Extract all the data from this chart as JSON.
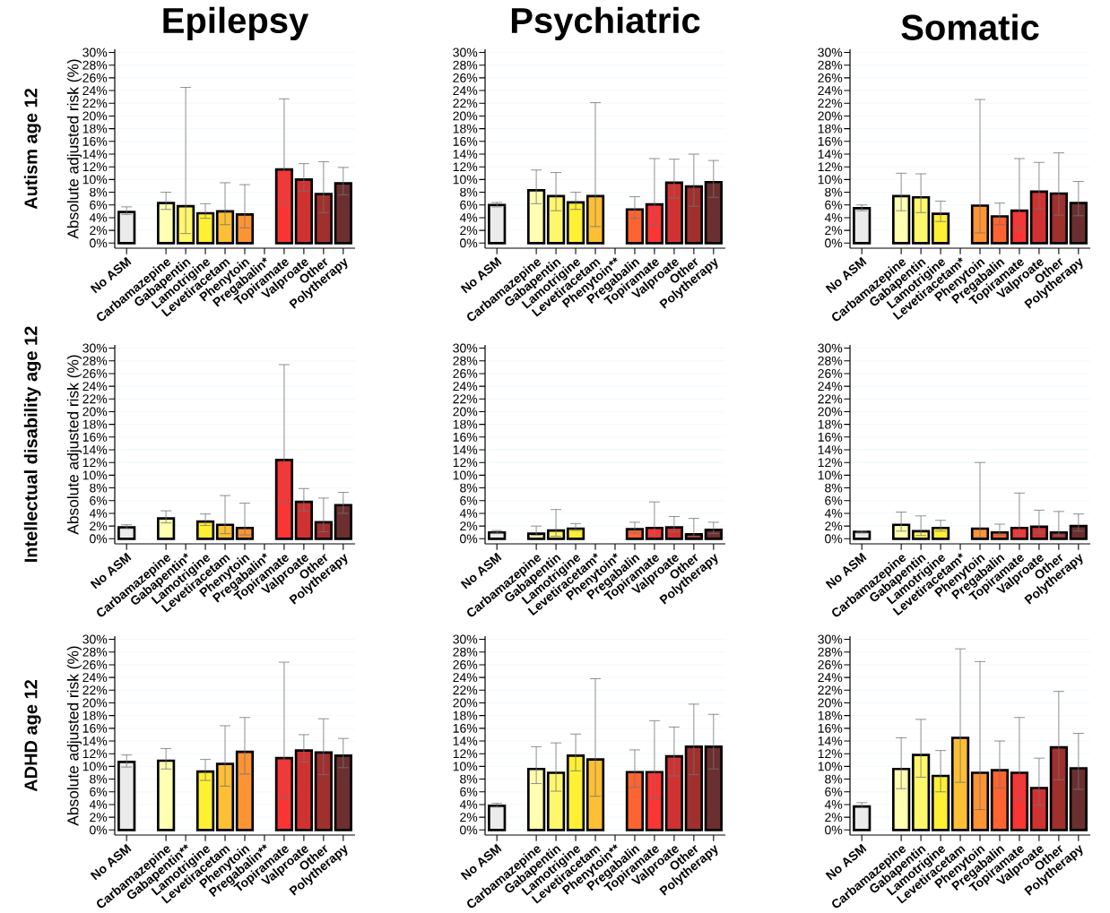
{
  "chart_data": [
    {
      "type": "bar",
      "title": "Epilepsy",
      "subtitle": "Autism age 12",
      "ylabel": "Absolute adjusted risk (%)",
      "grid": "y",
      "categories": [
        "No ASM",
        null,
        "Carbamazepine",
        "Gabapentin",
        "Lamotrigine",
        "Levetiracetam",
        "Phenytoin",
        "Pregabalin*",
        "Topiramate",
        "Valproate",
        "Other",
        "Polytherapy"
      ],
      "values": [
        4.9,
        null,
        6.3,
        5.8,
        4.7,
        5.0,
        4.5,
        null,
        11.6,
        10.0,
        7.7,
        9.4
      ],
      "errors": [
        [
          4.5,
          5.7
        ],
        null,
        [
          5.3,
          8.0
        ],
        [
          1.5,
          24.5
        ],
        [
          3.9,
          6.2
        ],
        [
          2.9,
          9.5
        ],
        [
          2.4,
          9.2
        ],
        null,
        [
          6.1,
          22.7
        ],
        [
          8.2,
          12.5
        ],
        [
          4.8,
          12.8
        ],
        [
          7.6,
          11.9
        ]
      ],
      "colors": [
        "#ebebeb",
        null,
        "#ffffb2",
        "#fff76b",
        "#fff033",
        "#fdbf35",
        "#fd9434",
        "#fd6431",
        "#fb3434",
        "#d03232",
        "#a0302e",
        "#6b2f2f"
      ],
      "ylim": [
        -0.8,
        30.5
      ],
      "yticks": [
        {
          "value": 0,
          "label": "0%"
        },
        {
          "value": 2,
          "label": "2%"
        },
        {
          "value": 4,
          "label": "4%"
        },
        {
          "value": 6,
          "label": "6%"
        },
        {
          "value": 8,
          "label": "8%"
        },
        {
          "value": 10,
          "label": "10%"
        },
        {
          "value": 12,
          "label": "12%"
        },
        {
          "value": 14,
          "label": "14%"
        },
        {
          "value": 16,
          "label": "16%"
        },
        {
          "value": 18,
          "label": "18%"
        },
        {
          "value": 20,
          "label": "20%"
        },
        {
          "value": 22,
          "label": "22%"
        },
        {
          "value": 24,
          "label": "24%"
        },
        {
          "value": 26,
          "label": "26%"
        },
        {
          "value": 28,
          "label": "28%"
        },
        {
          "value": 30,
          "label": "30%"
        }
      ]
    },
    {
      "type": "bar",
      "title": "Psychiatric",
      "grid": "y",
      "categories": [
        "No ASM",
        null,
        "Carbamazepine",
        "Gabapentin",
        "Lamotrigine",
        "Levetiracetam",
        "Phenytoin**",
        "Pregabalin",
        "Topiramate",
        "Valproate",
        "Other",
        "Polytherapy"
      ],
      "values": [
        6.0,
        null,
        8.3,
        7.4,
        6.4,
        7.4,
        null,
        5.3,
        6.1,
        9.5,
        8.9,
        9.6
      ],
      "errors": [
        [
          5.7,
          6.4
        ],
        null,
        [
          6.2,
          11.5
        ],
        [
          5.1,
          11.1
        ],
        [
          5.3,
          8.0
        ],
        [
          2.6,
          22.1
        ],
        null,
        [
          3.9,
          7.3
        ],
        [
          2.9,
          13.3
        ],
        [
          7.1,
          13.2
        ],
        [
          5.8,
          14.0
        ],
        [
          7.2,
          13.0
        ]
      ],
      "colors": [
        "#ebebeb",
        null,
        "#ffffb2",
        "#fff76b",
        "#fff033",
        "#fdbf35",
        "#fd9434",
        "#fd6431",
        "#fb3434",
        "#d03232",
        "#a0302e",
        "#6b2f2f"
      ],
      "ylim": [
        -0.8,
        30.5
      ],
      "yticks": [
        {
          "value": 0,
          "label": "0%"
        },
        {
          "value": 2,
          "label": "2%"
        },
        {
          "value": 4,
          "label": "4%"
        },
        {
          "value": 6,
          "label": "6%"
        },
        {
          "value": 8,
          "label": "8%"
        },
        {
          "value": 10,
          "label": "10%"
        },
        {
          "value": 12,
          "label": "12%"
        },
        {
          "value": 14,
          "label": "14%"
        },
        {
          "value": 16,
          "label": "16%"
        },
        {
          "value": 18,
          "label": "18%"
        },
        {
          "value": 20,
          "label": "20%"
        },
        {
          "value": 22,
          "label": "22%"
        },
        {
          "value": 24,
          "label": "24%"
        },
        {
          "value": 26,
          "label": "26%"
        },
        {
          "value": 28,
          "label": "28%"
        },
        {
          "value": 30,
          "label": "30%"
        }
      ]
    },
    {
      "type": "bar",
      "title": "Somatic",
      "grid": "y",
      "categories": [
        "No ASM",
        null,
        "Carbamazepine",
        "Gabapentin",
        "Lamotrigine",
        "Levetiracetam*",
        "Phenytoin",
        "Pregabalin",
        "Topiramate",
        "Valproate",
        "Other",
        "Polytherapy"
      ],
      "values": [
        5.5,
        null,
        7.4,
        7.2,
        4.6,
        null,
        5.9,
        4.2,
        5.1,
        8.1,
        7.8,
        6.3
      ],
      "errors": [
        [
          5.1,
          6.0
        ],
        null,
        [
          5.1,
          11.0
        ],
        [
          4.8,
          10.9
        ],
        [
          3.4,
          6.6
        ],
        null,
        [
          1.6,
          22.6
        ],
        [
          2.9,
          6.3
        ],
        [
          2.1,
          13.3
        ],
        [
          5.4,
          12.7
        ],
        [
          4.4,
          14.2
        ],
        [
          4.3,
          9.7
        ]
      ],
      "colors": [
        "#ebebeb",
        null,
        "#ffffb2",
        "#fff76b",
        "#fff033",
        "#fdbf35",
        "#fd9434",
        "#fd6431",
        "#fb3434",
        "#d03232",
        "#a0302e",
        "#6b2f2f"
      ],
      "ylim": [
        -0.8,
        30.5
      ],
      "yticks": [
        {
          "value": 0,
          "label": "0%"
        },
        {
          "value": 2,
          "label": "2%"
        },
        {
          "value": 4,
          "label": "4%"
        },
        {
          "value": 6,
          "label": "6%"
        },
        {
          "value": 8,
          "label": "8%"
        },
        {
          "value": 10,
          "label": "10%"
        },
        {
          "value": 12,
          "label": "12%"
        },
        {
          "value": 14,
          "label": "14%"
        },
        {
          "value": 16,
          "label": "16%"
        },
        {
          "value": 18,
          "label": "18%"
        },
        {
          "value": 20,
          "label": "20%"
        },
        {
          "value": 22,
          "label": "22%"
        },
        {
          "value": 24,
          "label": "24%"
        },
        {
          "value": 26,
          "label": "26%"
        },
        {
          "value": 28,
          "label": "28%"
        },
        {
          "value": 30,
          "label": "30%"
        }
      ]
    },
    {
      "type": "bar",
      "subtitle": "Intellectual disability age 12",
      "ylabel": "Absolute adjusted risk (%)",
      "grid": "y",
      "categories": [
        "No ASM",
        null,
        "Carbamazepine",
        "Gabapentin*",
        "Lamotrigine",
        "Levetiracetam",
        "Phenytoin",
        "Pregabalin*",
        "Topiramate",
        "Valproate",
        "Other",
        "Polytherapy"
      ],
      "values": [
        1.8,
        null,
        3.2,
        null,
        2.7,
        2.2,
        1.7,
        null,
        12.4,
        5.8,
        2.6,
        5.3
      ],
      "errors": [
        [
          1.6,
          2.2
        ],
        null,
        [
          2.5,
          4.4
        ],
        null,
        [
          2.1,
          3.9
        ],
        [
          0.8,
          6.8
        ],
        [
          0.6,
          5.6
        ],
        null,
        [
          5.7,
          27.4
        ],
        [
          4.4,
          7.9
        ],
        [
          1.1,
          6.4
        ],
        [
          4.0,
          7.3
        ]
      ],
      "colors": [
        "#ebebeb",
        null,
        "#ffffb2",
        "#fff76b",
        "#fff033",
        "#fdbf35",
        "#fd9434",
        "#fd6431",
        "#fb3434",
        "#d03232",
        "#a0302e",
        "#6b2f2f"
      ],
      "ylim": [
        -0.8,
        30.5
      ],
      "yticks": [
        {
          "value": 0,
          "label": "0%"
        },
        {
          "value": 2,
          "label": "2%"
        },
        {
          "value": 4,
          "label": "4%"
        },
        {
          "value": 6,
          "label": "6%"
        },
        {
          "value": 8,
          "label": "8%"
        },
        {
          "value": 10,
          "label": "10%"
        },
        {
          "value": 12,
          "label": "12%"
        },
        {
          "value": 14,
          "label": "14%"
        },
        {
          "value": 16,
          "label": "16%"
        },
        {
          "value": 18,
          "label": "18%"
        },
        {
          "value": 20,
          "label": "20%"
        },
        {
          "value": 22,
          "label": "22%"
        },
        {
          "value": 24,
          "label": "24%"
        },
        {
          "value": 26,
          "label": "26%"
        },
        {
          "value": 28,
          "label": "28%"
        },
        {
          "value": 30,
          "label": "30%"
        }
      ]
    },
    {
      "type": "bar",
      "grid": "y",
      "categories": [
        "No ASM",
        null,
        "Carbamazepine",
        "Gabapentin",
        "Lamotrigine",
        "Levetiracetam*",
        "Phenytoin*",
        "Pregabalin",
        "Topiramate",
        "Valproate",
        "Other",
        "Polytherapy"
      ],
      "values": [
        1.0,
        null,
        0.8,
        1.3,
        1.6,
        null,
        null,
        1.5,
        1.7,
        1.8,
        0.7,
        1.4
      ],
      "errors": [
        [
          0.9,
          1.3
        ],
        null,
        [
          0.5,
          2.0
        ],
        [
          0.4,
          4.6
        ],
        [
          1.3,
          2.4
        ],
        null,
        null,
        [
          0.9,
          2.6
        ],
        [
          0.6,
          5.8
        ],
        [
          1.1,
          3.5
        ],
        [
          0.4,
          3.2
        ],
        [
          0.8,
          2.6
        ]
      ],
      "colors": [
        "#ebebeb",
        null,
        "#ffffb2",
        "#fff76b",
        "#fff033",
        "#fdbf35",
        "#fd9434",
        "#fd6431",
        "#fb3434",
        "#d03232",
        "#a0302e",
        "#6b2f2f"
      ],
      "ylim": [
        -0.8,
        30.5
      ],
      "yticks": [
        {
          "value": 0,
          "label": "0%"
        },
        {
          "value": 2,
          "label": "2%"
        },
        {
          "value": 4,
          "label": "4%"
        },
        {
          "value": 6,
          "label": "6%"
        },
        {
          "value": 8,
          "label": "8%"
        },
        {
          "value": 10,
          "label": "10%"
        },
        {
          "value": 12,
          "label": "12%"
        },
        {
          "value": 14,
          "label": "14%"
        },
        {
          "value": 16,
          "label": "16%"
        },
        {
          "value": 18,
          "label": "18%"
        },
        {
          "value": 20,
          "label": "20%"
        },
        {
          "value": 22,
          "label": "22%"
        },
        {
          "value": 24,
          "label": "24%"
        },
        {
          "value": 26,
          "label": "26%"
        },
        {
          "value": 28,
          "label": "28%"
        },
        {
          "value": 30,
          "label": "30%"
        }
      ]
    },
    {
      "type": "bar",
      "grid": "y",
      "categories": [
        "No ASM",
        null,
        "Carbamazepine",
        "Gabapentin",
        "Lamotrigine",
        "Levetiracetam*",
        "Phenytoin",
        "Pregabalin",
        "Topiramate",
        "Valproate",
        "Other",
        "Polytherapy"
      ],
      "values": [
        1.1,
        null,
        2.2,
        1.2,
        1.7,
        null,
        1.6,
        1.0,
        1.7,
        1.9,
        1.0,
        2.0
      ],
      "errors": [
        [
          0.9,
          1.2
        ],
        null,
        [
          1.2,
          4.2
        ],
        [
          0.5,
          3.6
        ],
        [
          1.2,
          2.9
        ],
        null,
        [
          0.2,
          12.0
        ],
        [
          0.6,
          2.3
        ],
        [
          0.6,
          7.2
        ],
        [
          1.0,
          4.5
        ],
        [
          0.5,
          4.3
        ],
        [
          1.2,
          3.9
        ]
      ],
      "colors": [
        "#ebebeb",
        null,
        "#ffffb2",
        "#fff76b",
        "#fff033",
        "#fdbf35",
        "#fd9434",
        "#fd6431",
        "#fb3434",
        "#d03232",
        "#a0302e",
        "#6b2f2f"
      ],
      "ylim": [
        -0.8,
        30.5
      ],
      "yticks": [
        {
          "value": 0,
          "label": "0%"
        },
        {
          "value": 2,
          "label": "2%"
        },
        {
          "value": 4,
          "label": "4%"
        },
        {
          "value": 6,
          "label": "6%"
        },
        {
          "value": 8,
          "label": "8%"
        },
        {
          "value": 10,
          "label": "10%"
        },
        {
          "value": 12,
          "label": "12%"
        },
        {
          "value": 14,
          "label": "14%"
        },
        {
          "value": 16,
          "label": "16%"
        },
        {
          "value": 18,
          "label": "18%"
        },
        {
          "value": 20,
          "label": "20%"
        },
        {
          "value": 22,
          "label": "22%"
        },
        {
          "value": 24,
          "label": "24%"
        },
        {
          "value": 26,
          "label": "26%"
        },
        {
          "value": 28,
          "label": "28%"
        },
        {
          "value": 30,
          "label": "30%"
        }
      ]
    },
    {
      "type": "bar",
      "subtitle": "ADHD age 12",
      "ylabel": "Absolute adjusted risk (%)",
      "grid": "y",
      "categories": [
        "No ASM",
        null,
        "Carbamazepine",
        "Gabapentin**",
        "Lamotrigine",
        "Levetiracetam",
        "Phenytoin",
        "Pregabalin**",
        "Topiramate",
        "Valproate",
        "Other",
        "Polytherapy"
      ],
      "values": [
        10.7,
        null,
        10.9,
        null,
        9.2,
        10.4,
        12.3,
        null,
        11.3,
        12.5,
        12.2,
        11.7
      ],
      "errors": [
        [
          9.9,
          11.8
        ],
        null,
        [
          9.6,
          12.8
        ],
        null,
        [
          7.8,
          11.1
        ],
        [
          6.9,
          16.4
        ],
        [
          8.8,
          17.7
        ],
        null,
        [
          5.0,
          26.4
        ],
        [
          10.7,
          15.0
        ],
        [
          8.7,
          17.5
        ],
        [
          9.8,
          14.4
        ]
      ],
      "colors": [
        "#ebebeb",
        null,
        "#ffffb2",
        "#fff76b",
        "#fff033",
        "#fdbf35",
        "#fd9434",
        "#fd6431",
        "#fb3434",
        "#d03232",
        "#a0302e",
        "#6b2f2f"
      ],
      "ylim": [
        -0.8,
        30.5
      ],
      "yticks": [
        {
          "value": 0,
          "label": "0%"
        },
        {
          "value": 2,
          "label": "2%"
        },
        {
          "value": 4,
          "label": "4%"
        },
        {
          "value": 6,
          "label": "6%"
        },
        {
          "value": 8,
          "label": "8%"
        },
        {
          "value": 10,
          "label": "10%"
        },
        {
          "value": 12,
          "label": "12%"
        },
        {
          "value": 14,
          "label": "14%"
        },
        {
          "value": 16,
          "label": "16%"
        },
        {
          "value": 18,
          "label": "18%"
        },
        {
          "value": 20,
          "label": "20%"
        },
        {
          "value": 22,
          "label": "22%"
        },
        {
          "value": 24,
          "label": "24%"
        },
        {
          "value": 26,
          "label": "26%"
        },
        {
          "value": 28,
          "label": "28%"
        },
        {
          "value": 30,
          "label": "30%"
        }
      ]
    },
    {
      "type": "bar",
      "grid": "y",
      "categories": [
        "No ASM",
        null,
        "Carbamazepine",
        "Gabapentin",
        "Lamotrigine",
        "Levetiracetam",
        "Phenytoin**",
        "Pregabalin",
        "Topiramate",
        "Valproate",
        "Other",
        "Polytherapy"
      ],
      "values": [
        3.8,
        null,
        9.6,
        9.0,
        11.7,
        11.1,
        null,
        9.1,
        9.1,
        11.6,
        13.1,
        13.1
      ],
      "errors": [
        [
          3.6,
          4.2
        ],
        null,
        [
          7.3,
          13.1
        ],
        [
          6.1,
          13.7
        ],
        [
          9.3,
          15.1
        ],
        [
          5.3,
          23.8
        ],
        null,
        [
          6.7,
          12.6
        ],
        [
          4.9,
          17.2
        ],
        [
          8.5,
          16.2
        ],
        [
          8.7,
          19.8
        ],
        [
          9.6,
          18.2
        ]
      ],
      "colors": [
        "#ebebeb",
        null,
        "#ffffb2",
        "#fff76b",
        "#fff033",
        "#fdbf35",
        "#fd9434",
        "#fd6431",
        "#fb3434",
        "#d03232",
        "#a0302e",
        "#6b2f2f"
      ],
      "ylim": [
        -0.8,
        30.5
      ],
      "yticks": [
        {
          "value": 0,
          "label": "0%"
        },
        {
          "value": 2,
          "label": "2%"
        },
        {
          "value": 4,
          "label": "4%"
        },
        {
          "value": 6,
          "label": "6%"
        },
        {
          "value": 8,
          "label": "8%"
        },
        {
          "value": 10,
          "label": "10%"
        },
        {
          "value": 12,
          "label": "12%"
        },
        {
          "value": 14,
          "label": "14%"
        },
        {
          "value": 16,
          "label": "16%"
        },
        {
          "value": 18,
          "label": "18%"
        },
        {
          "value": 20,
          "label": "20%"
        },
        {
          "value": 22,
          "label": "22%"
        },
        {
          "value": 24,
          "label": "24%"
        },
        {
          "value": 26,
          "label": "26%"
        },
        {
          "value": 28,
          "label": "28%"
        },
        {
          "value": 30,
          "label": "30%"
        }
      ]
    },
    {
      "type": "bar",
      "grid": "y",
      "categories": [
        "No ASM",
        null,
        "Carbamazepine",
        "Gabapentin",
        "Lamotrigine",
        "Levetiracetam",
        "Phenytoin",
        "Pregabalin",
        "Topiramate",
        "Valproate",
        "Other",
        "Polytherapy"
      ],
      "values": [
        3.7,
        null,
        9.6,
        11.8,
        8.5,
        14.5,
        9.0,
        9.4,
        9.0,
        6.6,
        13.0,
        9.7
      ],
      "errors": [
        [
          3.5,
          4.3
        ],
        null,
        [
          6.5,
          14.5
        ],
        [
          8.3,
          17.4
        ],
        [
          6.0,
          12.5
        ],
        [
          7.5,
          28.5
        ],
        [
          3.2,
          26.5
        ],
        [
          6.6,
          14.0
        ],
        [
          4.7,
          17.7
        ],
        [
          3.9,
          11.3
        ],
        [
          7.9,
          21.8
        ],
        [
          6.4,
          15.2
        ]
      ],
      "colors": [
        "#ebebeb",
        null,
        "#ffffb2",
        "#fff76b",
        "#fff033",
        "#fdbf35",
        "#fd9434",
        "#fd6431",
        "#fb3434",
        "#d03232",
        "#a0302e",
        "#6b2f2f"
      ],
      "ylim": [
        -0.8,
        30.5
      ],
      "yticks": [
        {
          "value": 0,
          "label": "0%"
        },
        {
          "value": 2,
          "label": "2%"
        },
        {
          "value": 4,
          "label": "4%"
        },
        {
          "value": 6,
          "label": "6%"
        },
        {
          "value": 8,
          "label": "8%"
        },
        {
          "value": 10,
          "label": "10%"
        },
        {
          "value": 12,
          "label": "12%"
        },
        {
          "value": 14,
          "label": "14%"
        },
        {
          "value": 16,
          "label": "16%"
        },
        {
          "value": 18,
          "label": "18%"
        },
        {
          "value": 20,
          "label": "20%"
        },
        {
          "value": 22,
          "label": "22%"
        },
        {
          "value": 24,
          "label": "24%"
        },
        {
          "value": 26,
          "label": "26%"
        },
        {
          "value": 28,
          "label": "28%"
        },
        {
          "value": 30,
          "label": "30%"
        }
      ]
    }
  ]
}
